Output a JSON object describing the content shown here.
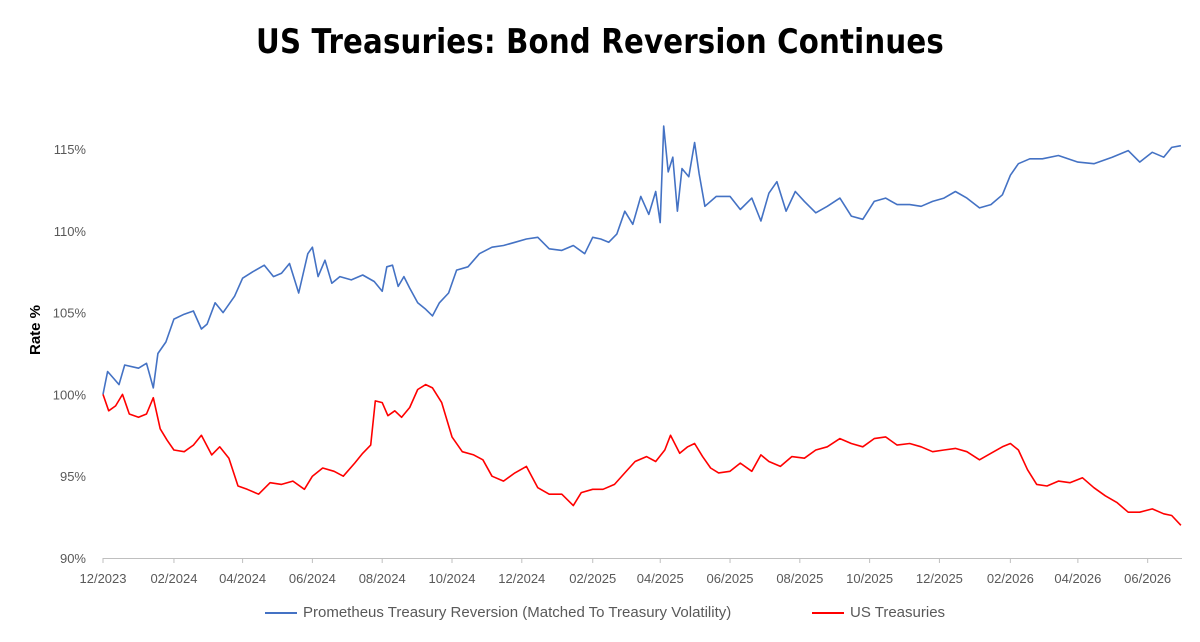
{
  "chart_data": {
    "type": "line",
    "title": "US Treasuries: Bond Reversion Continues",
    "xlabel": "",
    "ylabel": "Rate %",
    "x_tick_labels": [
      "12/2023",
      "02/2024",
      "04/2024",
      "06/2024",
      "08/2024",
      "10/2024",
      "12/2024",
      "02/2025",
      "04/2025",
      "06/2025",
      "08/2025",
      "10/2025",
      "12/2025",
      "02/2026",
      "04/2026",
      "06/2026"
    ],
    "y_tick_labels": [
      "90%",
      "95%",
      "100%",
      "105%",
      "110%",
      "115%"
    ],
    "ylim": [
      90,
      116.5
    ],
    "grid": false,
    "legend_position": "bottom",
    "series": [
      {
        "name": "Prometheus Treasury Reversion  (Matched To Treasury Volatility)",
        "color": "#4472C4",
        "points": [
          [
            "2023-12-01",
            100.0
          ],
          [
            "2023-12-05",
            101.4
          ],
          [
            "2023-12-10",
            101.0
          ],
          [
            "2023-12-15",
            100.6
          ],
          [
            "2023-12-20",
            101.8
          ],
          [
            "2024-01-01",
            101.6
          ],
          [
            "2024-01-08",
            101.9
          ],
          [
            "2024-01-14",
            100.4
          ],
          [
            "2024-01-18",
            102.5
          ],
          [
            "2024-01-25",
            103.2
          ],
          [
            "2024-02-01",
            104.6
          ],
          [
            "2024-02-10",
            104.9
          ],
          [
            "2024-02-18",
            105.1
          ],
          [
            "2024-02-25",
            104.0
          ],
          [
            "2024-03-01",
            104.3
          ],
          [
            "2024-03-08",
            105.6
          ],
          [
            "2024-03-15",
            105.0
          ],
          [
            "2024-03-25",
            106.0
          ],
          [
            "2024-04-01",
            107.1
          ],
          [
            "2024-04-10",
            107.5
          ],
          [
            "2024-04-20",
            107.9
          ],
          [
            "2024-04-28",
            107.2
          ],
          [
            "2024-05-05",
            107.4
          ],
          [
            "2024-05-12",
            108.0
          ],
          [
            "2024-05-20",
            106.2
          ],
          [
            "2024-05-28",
            108.6
          ],
          [
            "2024-06-01",
            109.0
          ],
          [
            "2024-06-06",
            107.2
          ],
          [
            "2024-06-12",
            108.2
          ],
          [
            "2024-06-18",
            106.8
          ],
          [
            "2024-06-25",
            107.2
          ],
          [
            "2024-07-05",
            107.0
          ],
          [
            "2024-07-15",
            107.3
          ],
          [
            "2024-07-25",
            106.9
          ],
          [
            "2024-08-01",
            106.3
          ],
          [
            "2024-08-05",
            107.8
          ],
          [
            "2024-08-10",
            107.9
          ],
          [
            "2024-08-15",
            106.6
          ],
          [
            "2024-08-20",
            107.2
          ],
          [
            "2024-08-25",
            106.5
          ],
          [
            "2024-09-01",
            105.6
          ],
          [
            "2024-09-08",
            105.2
          ],
          [
            "2024-09-14",
            104.8
          ],
          [
            "2024-09-20",
            105.6
          ],
          [
            "2024-09-28",
            106.2
          ],
          [
            "2024-10-05",
            107.6
          ],
          [
            "2024-10-15",
            107.8
          ],
          [
            "2024-10-25",
            108.6
          ],
          [
            "2024-11-05",
            109.0
          ],
          [
            "2024-11-15",
            109.1
          ],
          [
            "2024-11-25",
            109.3
          ],
          [
            "2024-12-05",
            109.5
          ],
          [
            "2024-12-15",
            109.6
          ],
          [
            "2024-12-25",
            108.9
          ],
          [
            "2025-01-05",
            108.8
          ],
          [
            "2025-01-15",
            109.1
          ],
          [
            "2025-01-25",
            108.6
          ],
          [
            "2025-02-01",
            109.6
          ],
          [
            "2025-02-08",
            109.5
          ],
          [
            "2025-02-15",
            109.3
          ],
          [
            "2025-02-22",
            109.8
          ],
          [
            "2025-03-01",
            111.2
          ],
          [
            "2025-03-08",
            110.4
          ],
          [
            "2025-03-15",
            112.1
          ],
          [
            "2025-03-22",
            111.0
          ],
          [
            "2025-03-28",
            112.4
          ],
          [
            "2025-04-01",
            110.5
          ],
          [
            "2025-04-04",
            116.4
          ],
          [
            "2025-04-08",
            113.6
          ],
          [
            "2025-04-12",
            114.5
          ],
          [
            "2025-04-16",
            111.2
          ],
          [
            "2025-04-20",
            113.8
          ],
          [
            "2025-04-26",
            113.3
          ],
          [
            "2025-05-01",
            115.4
          ],
          [
            "2025-05-05",
            113.5
          ],
          [
            "2025-05-10",
            111.5
          ],
          [
            "2025-05-20",
            112.1
          ],
          [
            "2025-06-01",
            112.1
          ],
          [
            "2025-06-10",
            111.3
          ],
          [
            "2025-06-20",
            112.0
          ],
          [
            "2025-06-28",
            110.6
          ],
          [
            "2025-07-05",
            112.3
          ],
          [
            "2025-07-12",
            113.0
          ],
          [
            "2025-07-20",
            111.2
          ],
          [
            "2025-07-28",
            112.4
          ],
          [
            "2025-08-05",
            111.8
          ],
          [
            "2025-08-15",
            111.1
          ],
          [
            "2025-08-25",
            111.5
          ],
          [
            "2025-09-05",
            112.0
          ],
          [
            "2025-09-15",
            110.9
          ],
          [
            "2025-09-25",
            110.7
          ],
          [
            "2025-10-05",
            111.8
          ],
          [
            "2025-10-15",
            112.0
          ],
          [
            "2025-10-25",
            111.6
          ],
          [
            "2025-11-05",
            111.6
          ],
          [
            "2025-11-15",
            111.5
          ],
          [
            "2025-11-25",
            111.8
          ],
          [
            "2025-12-05",
            112.0
          ],
          [
            "2025-12-15",
            112.4
          ],
          [
            "2025-12-25",
            112.0
          ],
          [
            "2026-01-05",
            111.4
          ],
          [
            "2026-01-15",
            111.6
          ],
          [
            "2026-01-25",
            112.2
          ],
          [
            "2026-02-01",
            113.4
          ],
          [
            "2026-02-08",
            114.1
          ],
          [
            "2026-02-18",
            114.4
          ],
          [
            "2026-03-01",
            114.4
          ],
          [
            "2026-03-15",
            114.6
          ],
          [
            "2026-04-01",
            114.2
          ],
          [
            "2026-04-15",
            114.1
          ],
          [
            "2026-05-01",
            114.5
          ],
          [
            "2026-05-15",
            114.9
          ],
          [
            "2026-05-25",
            114.2
          ],
          [
            "2026-06-05",
            114.8
          ],
          [
            "2026-06-15",
            114.5
          ],
          [
            "2026-06-22",
            115.1
          ],
          [
            "2026-06-30",
            115.2
          ]
        ]
      },
      {
        "name": "US Treasuries",
        "color": "#FF0000",
        "points": [
          [
            "2023-12-01",
            100.0
          ],
          [
            "2023-12-06",
            99.0
          ],
          [
            "2023-12-12",
            99.3
          ],
          [
            "2023-12-18",
            100.0
          ],
          [
            "2023-12-24",
            98.8
          ],
          [
            "2024-01-01",
            98.6
          ],
          [
            "2024-01-08",
            98.8
          ],
          [
            "2024-01-14",
            99.8
          ],
          [
            "2024-01-20",
            97.9
          ],
          [
            "2024-01-26",
            97.2
          ],
          [
            "2024-02-01",
            96.6
          ],
          [
            "2024-02-10",
            96.5
          ],
          [
            "2024-02-18",
            96.9
          ],
          [
            "2024-02-25",
            97.5
          ],
          [
            "2024-03-05",
            96.3
          ],
          [
            "2024-03-12",
            96.8
          ],
          [
            "2024-03-20",
            96.1
          ],
          [
            "2024-03-28",
            94.4
          ],
          [
            "2024-04-05",
            94.2
          ],
          [
            "2024-04-15",
            93.9
          ],
          [
            "2024-04-25",
            94.6
          ],
          [
            "2024-05-05",
            94.5
          ],
          [
            "2024-05-15",
            94.7
          ],
          [
            "2024-05-25",
            94.2
          ],
          [
            "2024-06-01",
            95.0
          ],
          [
            "2024-06-10",
            95.5
          ],
          [
            "2024-06-20",
            95.3
          ],
          [
            "2024-06-28",
            95.0
          ],
          [
            "2024-07-08",
            95.8
          ],
          [
            "2024-07-15",
            96.4
          ],
          [
            "2024-07-22",
            96.9
          ],
          [
            "2024-07-26",
            99.6
          ],
          [
            "2024-08-01",
            99.5
          ],
          [
            "2024-08-06",
            98.7
          ],
          [
            "2024-08-12",
            99.0
          ],
          [
            "2024-08-18",
            98.6
          ],
          [
            "2024-08-25",
            99.2
          ],
          [
            "2024-09-01",
            100.3
          ],
          [
            "2024-09-08",
            100.6
          ],
          [
            "2024-09-14",
            100.4
          ],
          [
            "2024-09-22",
            99.5
          ],
          [
            "2024-10-01",
            97.4
          ],
          [
            "2024-10-10",
            96.5
          ],
          [
            "2024-10-20",
            96.3
          ],
          [
            "2024-10-28",
            96.0
          ],
          [
            "2024-11-05",
            95.0
          ],
          [
            "2024-11-15",
            94.7
          ],
          [
            "2024-11-25",
            95.2
          ],
          [
            "2024-12-05",
            95.6
          ],
          [
            "2024-12-15",
            94.3
          ],
          [
            "2024-12-25",
            93.9
          ],
          [
            "2025-01-05",
            93.9
          ],
          [
            "2025-01-15",
            93.2
          ],
          [
            "2025-01-22",
            94.0
          ],
          [
            "2025-02-01",
            94.2
          ],
          [
            "2025-02-10",
            94.2
          ],
          [
            "2025-02-20",
            94.5
          ],
          [
            "2025-03-01",
            95.2
          ],
          [
            "2025-03-10",
            95.9
          ],
          [
            "2025-03-20",
            96.2
          ],
          [
            "2025-03-28",
            95.9
          ],
          [
            "2025-04-05",
            96.6
          ],
          [
            "2025-04-10",
            97.5
          ],
          [
            "2025-04-18",
            96.4
          ],
          [
            "2025-04-25",
            96.8
          ],
          [
            "2025-05-01",
            97.0
          ],
          [
            "2025-05-08",
            96.2
          ],
          [
            "2025-05-15",
            95.5
          ],
          [
            "2025-05-22",
            95.2
          ],
          [
            "2025-06-01",
            95.3
          ],
          [
            "2025-06-10",
            95.8
          ],
          [
            "2025-06-20",
            95.3
          ],
          [
            "2025-06-28",
            96.3
          ],
          [
            "2025-07-05",
            95.9
          ],
          [
            "2025-07-15",
            95.6
          ],
          [
            "2025-07-25",
            96.2
          ],
          [
            "2025-08-05",
            96.1
          ],
          [
            "2025-08-15",
            96.6
          ],
          [
            "2025-08-25",
            96.8
          ],
          [
            "2025-09-05",
            97.3
          ],
          [
            "2025-09-15",
            97.0
          ],
          [
            "2025-09-25",
            96.8
          ],
          [
            "2025-10-05",
            97.3
          ],
          [
            "2025-10-15",
            97.4
          ],
          [
            "2025-10-25",
            96.9
          ],
          [
            "2025-11-05",
            97.0
          ],
          [
            "2025-11-15",
            96.8
          ],
          [
            "2025-11-25",
            96.5
          ],
          [
            "2025-12-05",
            96.6
          ],
          [
            "2025-12-15",
            96.7
          ],
          [
            "2025-12-25",
            96.5
          ],
          [
            "2026-01-05",
            96.0
          ],
          [
            "2026-01-15",
            96.4
          ],
          [
            "2026-01-25",
            96.8
          ],
          [
            "2026-02-01",
            97.0
          ],
          [
            "2026-02-08",
            96.6
          ],
          [
            "2026-02-16",
            95.4
          ],
          [
            "2026-02-24",
            94.5
          ],
          [
            "2026-03-05",
            94.4
          ],
          [
            "2026-03-15",
            94.7
          ],
          [
            "2026-03-25",
            94.6
          ],
          [
            "2026-04-05",
            94.9
          ],
          [
            "2026-04-15",
            94.3
          ],
          [
            "2026-04-25",
            93.8
          ],
          [
            "2026-05-05",
            93.4
          ],
          [
            "2026-05-15",
            92.8
          ],
          [
            "2026-05-25",
            92.8
          ],
          [
            "2026-06-05",
            93.0
          ],
          [
            "2026-06-15",
            92.7
          ],
          [
            "2026-06-22",
            92.6
          ],
          [
            "2026-06-30",
            92.0
          ]
        ]
      }
    ]
  }
}
